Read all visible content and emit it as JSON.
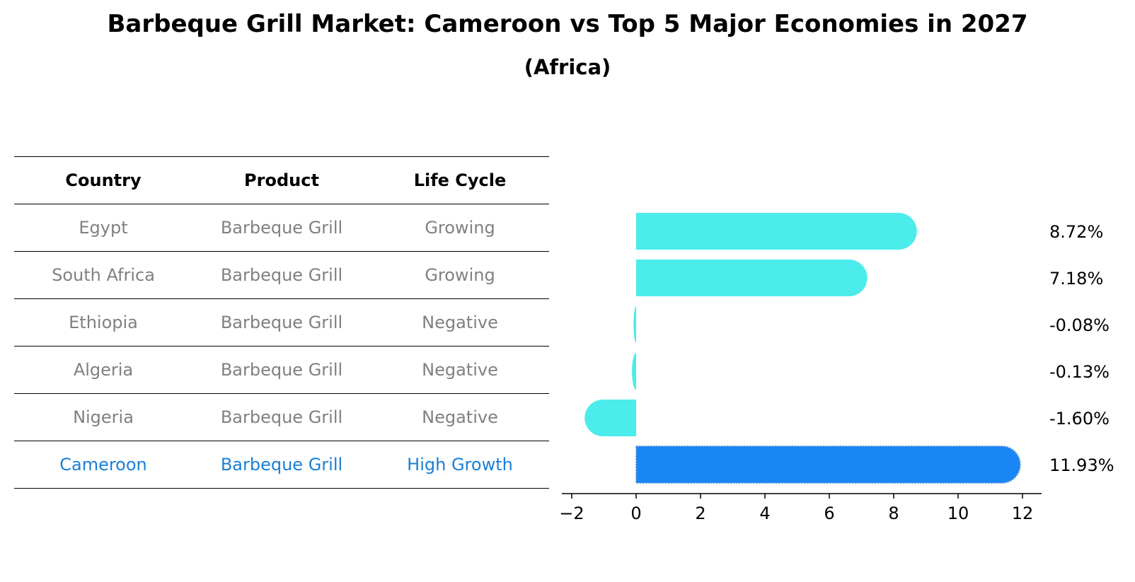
{
  "chart_data": {
    "type": "bar",
    "orientation": "horizontal",
    "title": "Barbeque Grill Market: Cameroon vs Top 5 Major Economies in 2027",
    "subtitle": "(Africa)",
    "categories": [
      "Egypt",
      "South Africa",
      "Ethiopia",
      "Algeria",
      "Nigeria",
      "Cameroon"
    ],
    "values": [
      8.72,
      7.18,
      -0.08,
      -0.13,
      -1.6,
      11.93
    ],
    "value_labels": [
      "8.72%",
      "7.18%",
      "-0.08%",
      "-0.13%",
      "-1.60%",
      "11.93%"
    ],
    "highlight": "Cameroon",
    "xlim": [
      -2.5,
      12.6
    ],
    "xticks": [
      -2,
      0,
      2,
      4,
      6,
      8,
      10,
      12
    ],
    "xtick_labels": [
      "−2",
      "0",
      "2",
      "4",
      "6",
      "8",
      "10",
      "12"
    ],
    "xlabel": "",
    "ylabel": "",
    "grid": false,
    "colors": {
      "bar": "#4beceb",
      "highlight": "#1a85f5",
      "highlight_text": "#1a7fd6",
      "muted_text": "#808080"
    }
  },
  "table": {
    "headers": [
      "Country",
      "Product",
      "Life Cycle"
    ],
    "rows": [
      [
        "Egypt",
        "Barbeque Grill",
        "Growing"
      ],
      [
        "South Africa",
        "Barbeque Grill",
        "Growing"
      ],
      [
        "Ethiopia",
        "Barbeque Grill",
        "Negative"
      ],
      [
        "Algeria",
        "Barbeque Grill",
        "Negative"
      ],
      [
        "Nigeria",
        "Barbeque Grill",
        "Negative"
      ],
      [
        "Cameroon",
        "Barbeque Grill",
        "High Growth"
      ]
    ]
  }
}
